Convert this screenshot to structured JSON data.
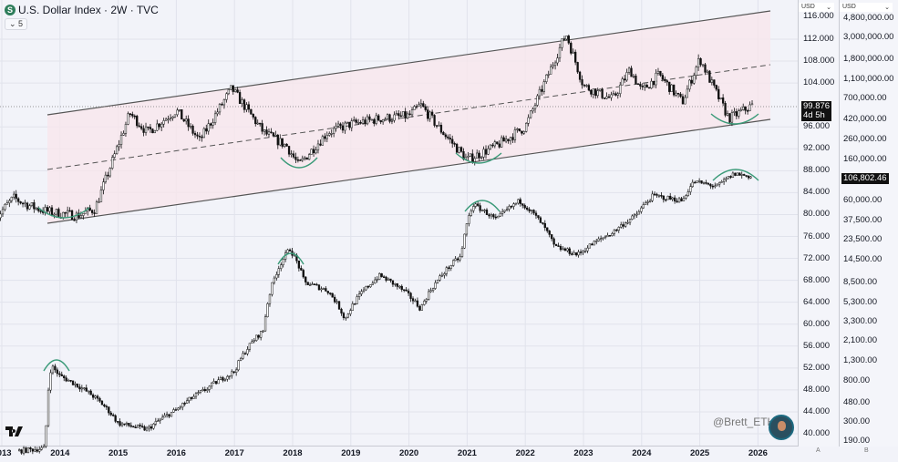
{
  "header": {
    "symbol_icon": "S",
    "title": "U.S. Dollar Index · 2W · TVC",
    "collapse_label": "5"
  },
  "axes": {
    "left_currency": "USD",
    "right_currency": "USD",
    "left_ticks": [
      "116.000",
      "112.000",
      "108.000",
      "104.000",
      "96.000",
      "92.000",
      "88.000",
      "84.000",
      "80.000",
      "76.000",
      "72.000",
      "68.000",
      "64.000",
      "60.000",
      "56.000",
      "52.000",
      "48.000",
      "44.000",
      "40.000"
    ],
    "right_ticks": [
      "4,800,000.00",
      "3,000,000.00",
      "1,800,000.00",
      "1,100,000.00",
      "700,000.00",
      "420,000.00",
      "260,000.00",
      "160,000.00",
      "60,000.00",
      "37,500.00",
      "23,500.00",
      "14,500.00",
      "8,500.00",
      "5,300.00",
      "3,300.00",
      "2,100.00",
      "1,300.00",
      "800.00",
      "480.00",
      "300.00",
      "190.00"
    ],
    "left_price_tag": "99.876",
    "left_countdown": "4d 5h",
    "right_price_tag": "106,802.46",
    "scale_a": "A",
    "scale_b": "B",
    "x_ticks": [
      "2013",
      "2014",
      "2015",
      "2016",
      "2017",
      "2018",
      "2019",
      "2020",
      "2021",
      "2022",
      "2023",
      "2024",
      "2025",
      "2026"
    ]
  },
  "watermark": "@Brett_ETH",
  "logo": "TV",
  "colors": {
    "background": "#f2f3f9",
    "channel_fill": "#f7e6ec",
    "arc": "#3a9a78",
    "candle": "#111111",
    "line": "#555555"
  },
  "chart_data": {
    "type": "candlestick",
    "title": "U.S. Dollar Index · 2W · TVC",
    "grid": true,
    "x_range": [
      2013,
      2026.3
    ],
    "left_axis": {
      "ylim": [
        38,
        117
      ],
      "scale": "linear",
      "currency": "USD"
    },
    "right_axis": {
      "ylim": [
        170,
        5500000
      ],
      "scale": "log",
      "currency": "USD"
    },
    "series": [
      {
        "axis": "left",
        "last": 99.876,
        "points": [
          [
            2012.9,
            79.5
          ],
          [
            2013.2,
            83
          ],
          [
            2013.5,
            81.5
          ],
          [
            2013.8,
            80.5
          ],
          [
            2014.3,
            79.8
          ],
          [
            2014.6,
            81
          ],
          [
            2015.2,
            98.5
          ],
          [
            2015.5,
            95
          ],
          [
            2016.0,
            99
          ],
          [
            2016.4,
            93.5
          ],
          [
            2016.95,
            103
          ],
          [
            2017.5,
            95
          ],
          [
            2017.9,
            92.5
          ],
          [
            2018.1,
            89
          ],
          [
            2018.6,
            95
          ],
          [
            2019.0,
            96.5
          ],
          [
            2019.5,
            97.5
          ],
          [
            2020.0,
            98
          ],
          [
            2020.2,
            100
          ],
          [
            2020.5,
            96
          ],
          [
            2021.0,
            90
          ],
          [
            2021.5,
            92.5
          ],
          [
            2022.0,
            96
          ],
          [
            2022.7,
            113
          ],
          [
            2023.0,
            103.5
          ],
          [
            2023.5,
            101
          ],
          [
            2023.8,
            106.5
          ],
          [
            2024.0,
            102.5
          ],
          [
            2024.3,
            105.5
          ],
          [
            2024.7,
            100.5
          ],
          [
            2025.0,
            108.5
          ],
          [
            2025.2,
            104
          ],
          [
            2025.5,
            97.5
          ],
          [
            2025.9,
            99.9
          ]
        ]
      },
      {
        "axis": "right",
        "last": 106802.46,
        "points": [
          [
            2013.3,
            150
          ],
          [
            2013.75,
            160
          ],
          [
            2013.85,
            1150
          ],
          [
            2014.0,
            900
          ],
          [
            2014.5,
            600
          ],
          [
            2015.0,
            290
          ],
          [
            2015.5,
            250
          ],
          [
            2016.0,
            400
          ],
          [
            2016.5,
            650
          ],
          [
            2017.0,
            1000
          ],
          [
            2017.5,
            2700
          ],
          [
            2017.95,
            19000
          ],
          [
            2018.2,
            8500
          ],
          [
            2018.6,
            7000
          ],
          [
            2018.9,
            3500
          ],
          [
            2019.5,
            10000
          ],
          [
            2019.9,
            7000
          ],
          [
            2020.2,
            4500
          ],
          [
            2020.5,
            9000
          ],
          [
            2020.9,
            16000
          ],
          [
            2021.1,
            55000
          ],
          [
            2021.5,
            38000
          ],
          [
            2021.9,
            60000
          ],
          [
            2022.5,
            20000
          ],
          [
            2022.9,
            16500
          ],
          [
            2023.5,
            28000
          ],
          [
            2023.9,
            42000
          ],
          [
            2024.2,
            68000
          ],
          [
            2024.7,
            60000
          ],
          [
            2024.9,
            95000
          ],
          [
            2025.3,
            85000
          ],
          [
            2025.6,
            115000
          ],
          [
            2025.9,
            106802
          ]
        ]
      }
    ],
    "annotations": {
      "channel": "parallel channel with dashed midline",
      "arcs_bottoms_left_axis": [
        "2014",
        "2018",
        "2021",
        "2025"
      ],
      "arcs_tops_right_axis": [
        "2013",
        "2017",
        "2021",
        "2025"
      ]
    }
  }
}
